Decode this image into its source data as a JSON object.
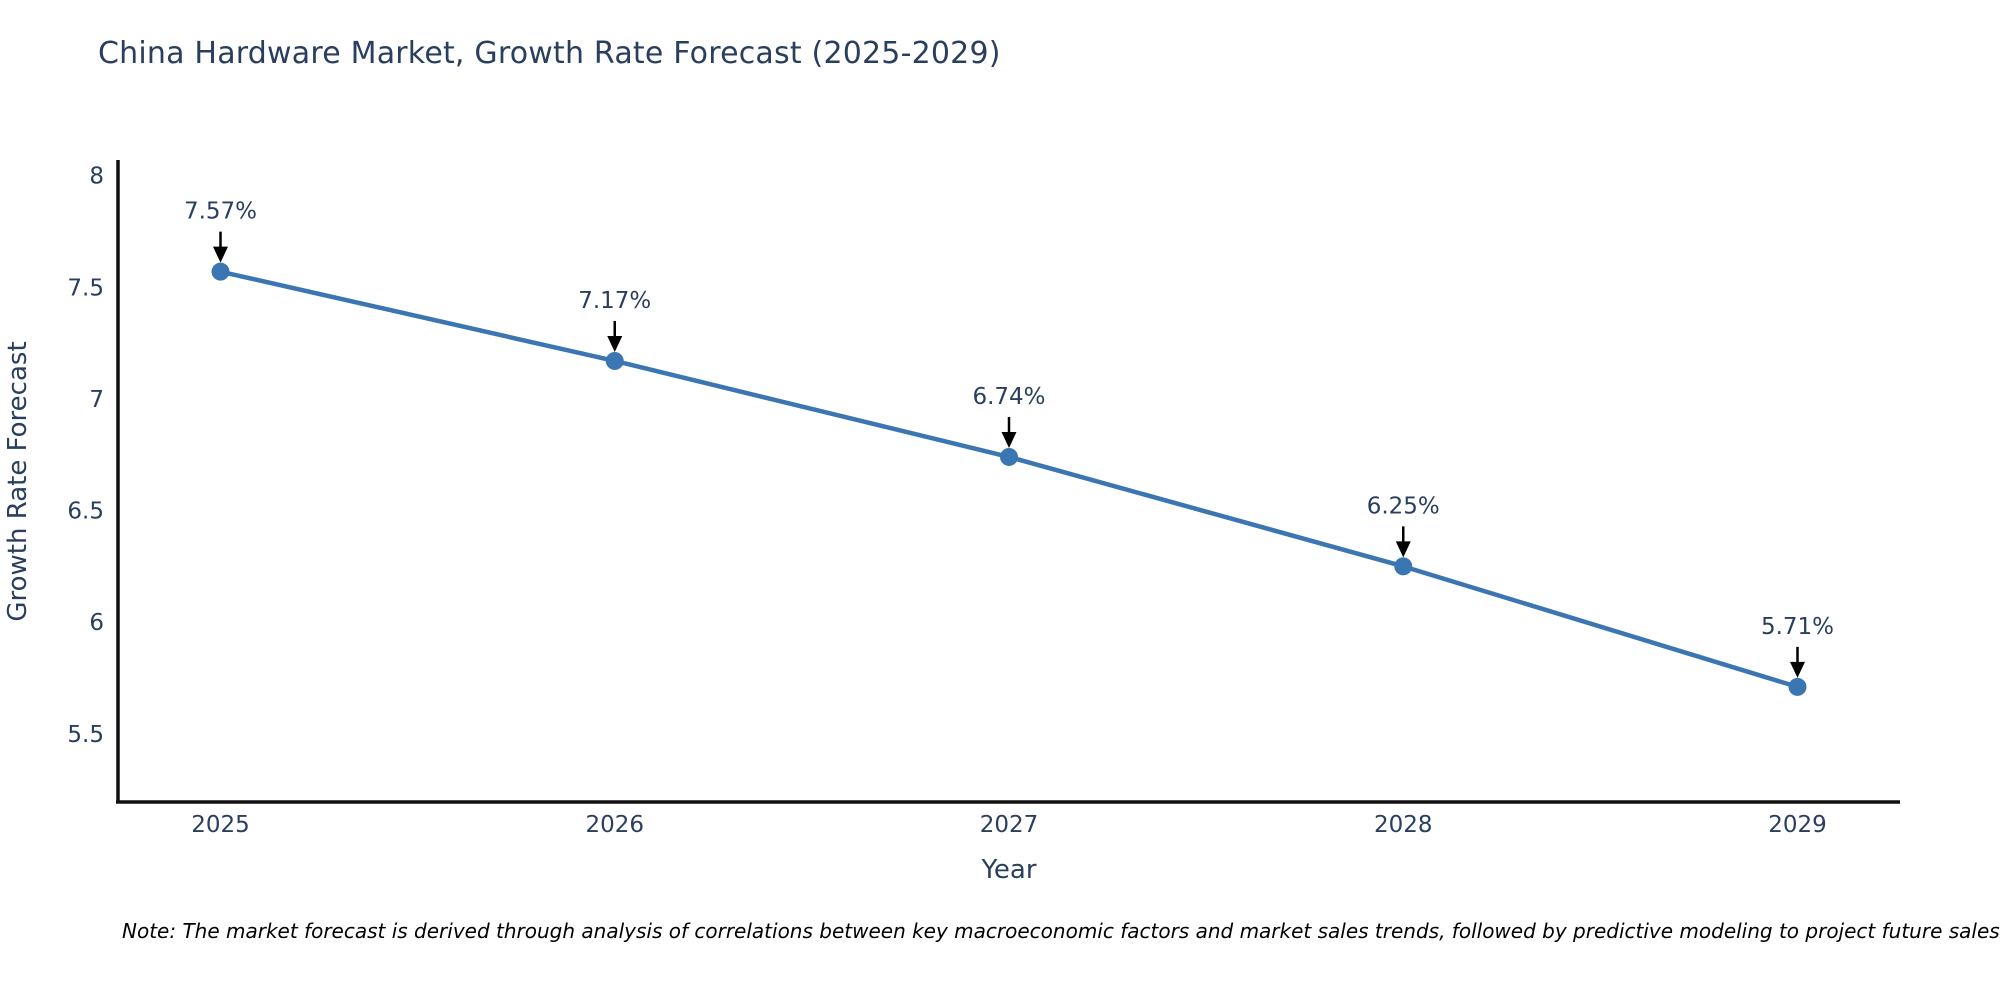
{
  "title": "China Hardware Market, Growth Rate Forecast (2025-2029)",
  "note": "Note: The market forecast is derived through analysis of correlations between key macroeconomic factors and market sales trends, followed by predictive modeling to project future sales",
  "chart_data": {
    "type": "line",
    "title": "China Hardware Market, Growth Rate Forecast (2025-2029)",
    "xlabel": "Year",
    "ylabel": "Growth Rate Forecast",
    "x": [
      2025,
      2026,
      2027,
      2028,
      2029
    ],
    "series": [
      {
        "name": "Growth Rate Forecast",
        "values": [
          7.57,
          7.17,
          6.74,
          6.25,
          5.71
        ]
      }
    ],
    "point_labels": [
      "7.57%",
      "7.17%",
      "6.74%",
      "6.25%",
      "5.71%"
    ],
    "xticks": [
      "2025",
      "2026",
      "2027",
      "2028",
      "2029"
    ],
    "yticks": [
      8,
      7.5,
      7,
      6.5,
      6,
      5.5
    ],
    "ytick_labels": [
      "8",
      "7.5",
      "7",
      "6.5",
      "6",
      "5.5"
    ],
    "xlim": [
      2024.74,
      2029.26
    ],
    "ylim": [
      5.19,
      8.07
    ],
    "grid": false,
    "legend": "none",
    "annotation_style": "arrow-down"
  },
  "colors": {
    "line": "#3b76b2",
    "marker": "#3a76b2",
    "arrow": "#000000",
    "text": "#2a3f5f",
    "axis": "#111111",
    "note_text": "#000000",
    "background": "#ffffff"
  }
}
